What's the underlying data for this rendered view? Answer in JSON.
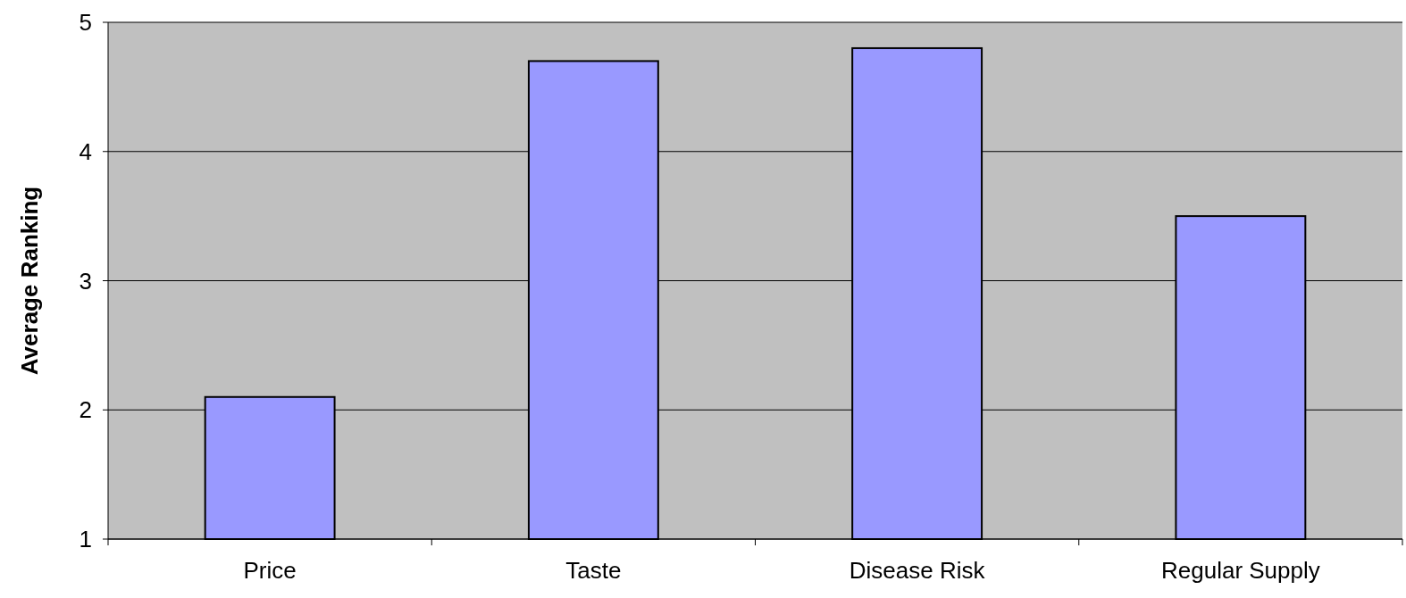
{
  "chart_data": {
    "type": "bar",
    "ylabel": "Average Ranking",
    "categories": [
      "Price",
      "Taste",
      "Disease Risk",
      "Regular Supply"
    ],
    "values": [
      2.1,
      4.7,
      4.8,
      3.5
    ],
    "color": "#9999ff",
    "ylim": [
      1,
      5
    ],
    "yticks": [
      1,
      2,
      3,
      4,
      5
    ],
    "grid": "y"
  }
}
